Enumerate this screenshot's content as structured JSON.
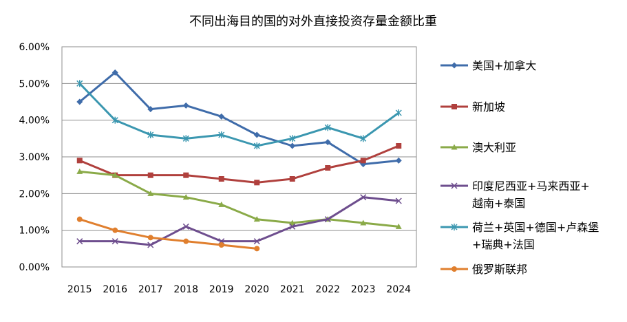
{
  "chart_data": {
    "type": "line",
    "title": "不同出海目的国的对外直接投资存量金额比重",
    "xlabel": "",
    "ylabel": "",
    "categories": [
      "2015",
      "2016",
      "2017",
      "2018",
      "2019",
      "2020",
      "2021",
      "2022",
      "2023",
      "2024"
    ],
    "ylim": [
      0,
      6
    ],
    "y_ticks": [
      "0.00%",
      "1.00%",
      "2.00%",
      "3.00%",
      "4.00%",
      "5.00%",
      "6.00%"
    ],
    "y_unit": "%",
    "grid": true,
    "legend_position": "right",
    "series": [
      {
        "name": "美国+加拿大",
        "lines": [
          "美国+加拿大"
        ],
        "color": "#3F6CAA",
        "marker": "diamond",
        "values": [
          4.5,
          5.3,
          4.3,
          4.4,
          4.1,
          3.6,
          3.3,
          3.4,
          2.8,
          2.9
        ]
      },
      {
        "name": "新加坡",
        "lines": [
          "新加坡"
        ],
        "color": "#B0403D",
        "marker": "square",
        "values": [
          2.9,
          2.5,
          2.5,
          2.5,
          2.4,
          2.3,
          2.4,
          2.7,
          2.9,
          3.3
        ]
      },
      {
        "name": "澳大利亚",
        "lines": [
          "澳大利亚"
        ],
        "color": "#8AAA48",
        "marker": "triangle",
        "values": [
          2.6,
          2.5,
          2.0,
          1.9,
          1.7,
          1.3,
          1.2,
          1.3,
          1.2,
          1.1
        ]
      },
      {
        "name": "印度尼西亚+马来西亚+越南+泰国",
        "lines": [
          "印度尼西亚+马来西亚+",
          "越南+泰国"
        ],
        "color": "#6E4E8E",
        "marker": "x",
        "values": [
          0.7,
          0.7,
          0.6,
          1.1,
          0.7,
          0.7,
          1.1,
          1.3,
          1.9,
          1.8
        ]
      },
      {
        "name": "荷兰+英国+德国+卢森堡+瑞典+法国",
        "lines": [
          "荷兰+英国+德国+卢森堡",
          "+瑞典+法国"
        ],
        "color": "#3B97B0",
        "marker": "asterisk",
        "values": [
          5.0,
          4.0,
          3.6,
          3.5,
          3.6,
          3.3,
          3.5,
          3.8,
          3.5,
          4.2
        ]
      },
      {
        "name": "俄罗斯联邦",
        "lines": [
          "俄罗斯联邦"
        ],
        "color": "#E07F2E",
        "marker": "circle",
        "values": [
          1.3,
          1.0,
          0.8,
          0.7,
          0.6,
          0.5,
          null,
          null,
          null,
          null
        ]
      }
    ]
  }
}
